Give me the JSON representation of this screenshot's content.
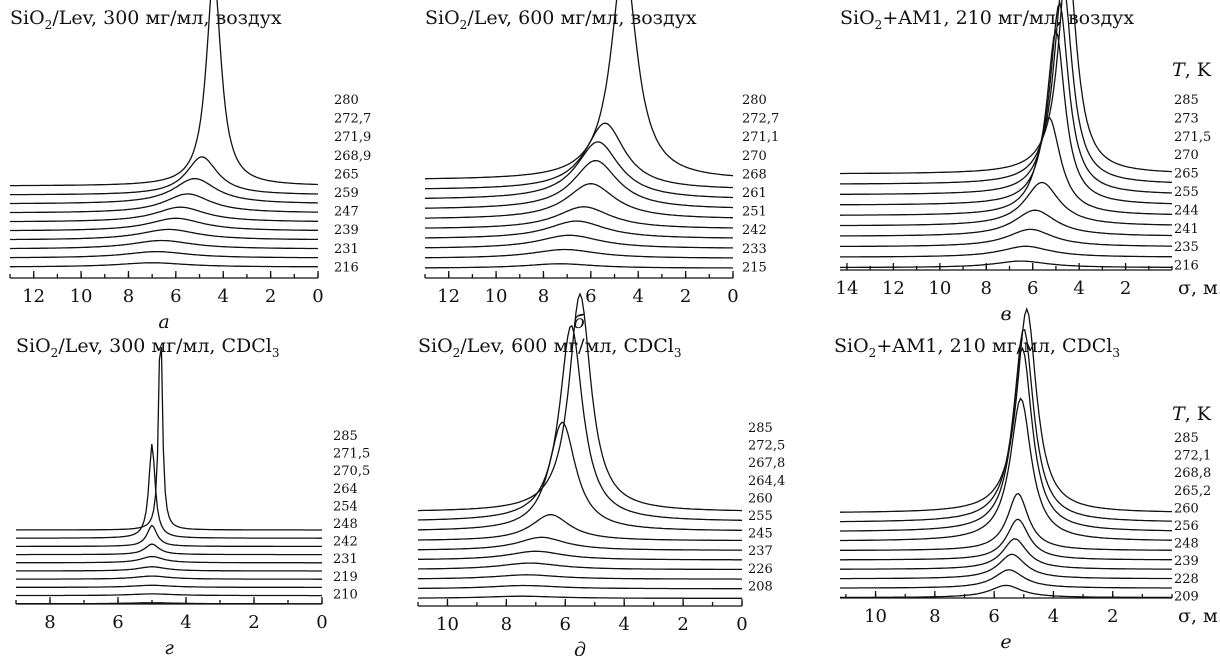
{
  "chart_data": [
    {
      "type": "line",
      "panel_letter": "а",
      "title": {
        "pre": "SiO",
        "sub": "2",
        "post": "/Lev, 300 мг/мл, воздух"
      },
      "x_ticks": [
        "12",
        "10",
        "8",
        "6",
        "4",
        "2",
        "0"
      ],
      "x_range": [
        13,
        0
      ],
      "series": [
        {
          "name": "280",
          "peak_position": 4.4,
          "peak_width": 0.75,
          "peak_height": 1.0
        },
        {
          "name": "272,7",
          "peak_position": 4.9,
          "peak_width": 1.6,
          "peak_height": 0.18
        },
        {
          "name": "271,9",
          "peak_position": 5.2,
          "peak_width": 2.2,
          "peak_height": 0.12
        },
        {
          "name": "268,9",
          "peak_position": 5.5,
          "peak_width": 2.4,
          "peak_height": 0.09
        },
        {
          "name": "265",
          "peak_position": 5.8,
          "peak_width": 2.6,
          "peak_height": 0.07
        },
        {
          "name": "259",
          "peak_position": 6.0,
          "peak_width": 2.8,
          "peak_height": 0.06
        },
        {
          "name": "247",
          "peak_position": 6.3,
          "peak_width": 3.0,
          "peak_height": 0.05
        },
        {
          "name": "239",
          "peak_position": 6.6,
          "peak_width": 3.2,
          "peak_height": 0.04
        },
        {
          "name": "231",
          "peak_position": 6.8,
          "peak_width": 3.3,
          "peak_height": 0.03
        },
        {
          "name": "216",
          "peak_position": 7.0,
          "peak_width": 3.5,
          "peak_height": 0.02
        }
      ]
    },
    {
      "type": "line",
      "panel_letter": "б",
      "title": {
        "pre": "SiO",
        "sub": "2",
        "post": "/Lev, 600 мг/мл, воздух"
      },
      "x_ticks": [
        "12",
        "10",
        "8",
        "6",
        "4",
        "2",
        "0"
      ],
      "x_range": [
        13,
        0
      ],
      "series": [
        {
          "name": "280",
          "peak_position": 4.6,
          "peak_width": 1.3,
          "peak_height": 1.0
        },
        {
          "name": "272,7",
          "peak_position": 5.4,
          "peak_width": 2.0,
          "peak_height": 0.3
        },
        {
          "name": "271,1",
          "peak_position": 5.7,
          "peak_width": 2.2,
          "peak_height": 0.26
        },
        {
          "name": "270",
          "peak_position": 5.8,
          "peak_width": 2.3,
          "peak_height": 0.22
        },
        {
          "name": "268",
          "peak_position": 6.0,
          "peak_width": 2.5,
          "peak_height": 0.16
        },
        {
          "name": "261",
          "peak_position": 6.3,
          "peak_width": 2.8,
          "peak_height": 0.1
        },
        {
          "name": "251",
          "peak_position": 6.6,
          "peak_width": 3.0,
          "peak_height": 0.08
        },
        {
          "name": "242",
          "peak_position": 6.9,
          "peak_width": 3.2,
          "peak_height": 0.06
        },
        {
          "name": "233",
          "peak_position": 7.1,
          "peak_width": 3.4,
          "peak_height": 0.04
        },
        {
          "name": "215",
          "peak_position": 7.3,
          "peak_width": 3.5,
          "peak_height": 0.02
        }
      ]
    },
    {
      "type": "line",
      "panel_letter": "в",
      "title": {
        "pre": "SiO",
        "sub": "2",
        "post": "+AM1, 210 мг/мл, воздух"
      },
      "temperature_unit": {
        "sym": "T",
        "rest": ", K"
      },
      "x_unit": "σ, м. д.",
      "x_ticks": [
        "14",
        "12",
        "10",
        "8",
        "6",
        "4",
        "2"
      ],
      "x_range": [
        14.3,
        0
      ],
      "series": [
        {
          "name": "285",
          "peak_position": 4.5,
          "peak_width": 0.95,
          "peak_height": 1.0
        },
        {
          "name": "273",
          "peak_position": 4.7,
          "peak_width": 0.95,
          "peak_height": 0.93
        },
        {
          "name": "271,5",
          "peak_position": 4.85,
          "peak_width": 0.95,
          "peak_height": 0.88
        },
        {
          "name": "270",
          "peak_position": 5.0,
          "peak_width": 0.95,
          "peak_height": 0.8
        },
        {
          "name": "265",
          "peak_position": 5.3,
          "peak_width": 1.2,
          "peak_height": 0.45
        },
        {
          "name": "255",
          "peak_position": 5.6,
          "peak_width": 1.8,
          "peak_height": 0.2
        },
        {
          "name": "244",
          "peak_position": 5.9,
          "peak_width": 2.2,
          "peak_height": 0.12
        },
        {
          "name": "241",
          "peak_position": 6.1,
          "peak_width": 2.4,
          "peak_height": 0.08
        },
        {
          "name": "235",
          "peak_position": 6.3,
          "peak_width": 2.6,
          "peak_height": 0.05
        },
        {
          "name": "216",
          "peak_position": 6.5,
          "peak_width": 2.8,
          "peak_height": 0.03
        }
      ]
    },
    {
      "type": "line",
      "panel_letter": "г",
      "title": {
        "pre": "SiO",
        "sub": "2",
        "post": "/Lev, 300 мг/мл, CDCl",
        "sub2": "3"
      },
      "x_ticks": [
        "8",
        "6",
        "4",
        "2",
        "0"
      ],
      "x_range": [
        9,
        0
      ],
      "series": [
        {
          "name": "285",
          "peak_position": 4.75,
          "peak_width": 0.13,
          "peak_height": 1.0
        },
        {
          "name": "271,5",
          "peak_position": 5.0,
          "peak_width": 0.22,
          "peak_height": 0.45
        },
        {
          "name": "270,5",
          "peak_position": 5.0,
          "peak_width": 0.35,
          "peak_height": 0.1
        },
        {
          "name": "264",
          "peak_position": 5.0,
          "peak_width": 0.5,
          "peak_height": 0.05
        },
        {
          "name": "254",
          "peak_position": 5.0,
          "peak_width": 0.8,
          "peak_height": 0.03
        },
        {
          "name": "248",
          "peak_position": 5.0,
          "peak_width": 1.0,
          "peak_height": 0.02
        },
        {
          "name": "242",
          "peak_position": 5.0,
          "peak_width": 1.2,
          "peak_height": 0.015
        },
        {
          "name": "231",
          "peak_position": 5.0,
          "peak_width": 1.4,
          "peak_height": 0.01
        },
        {
          "name": "219",
          "peak_position": 5.0,
          "peak_width": 1.6,
          "peak_height": 0.008
        },
        {
          "name": "210",
          "peak_position": 5.0,
          "peak_width": 1.8,
          "peak_height": 0.005
        }
      ]
    },
    {
      "type": "line",
      "panel_letter": "д",
      "title": {
        "pre": "SiO",
        "sub": "2",
        "post": "/Lev, 600 мг/мл, CDCl",
        "sub2": "3"
      },
      "x_ticks": [
        "10",
        "8",
        "6",
        "4",
        "2",
        "0"
      ],
      "x_range": [
        11,
        0
      ],
      "series": [
        {
          "name": "285",
          "peak_position": 5.5,
          "peak_width": 0.9,
          "peak_height": 1.0
        },
        {
          "name": "272,5",
          "peak_position": 5.8,
          "peak_width": 0.95,
          "peak_height": 0.9
        },
        {
          "name": "267,8",
          "peak_position": 6.1,
          "peak_width": 1.1,
          "peak_height": 0.5
        },
        {
          "name": "264,4",
          "peak_position": 6.5,
          "peak_width": 1.6,
          "peak_height": 0.12
        },
        {
          "name": "260",
          "peak_position": 6.8,
          "peak_width": 2.0,
          "peak_height": 0.06
        },
        {
          "name": "255",
          "peak_position": 7.0,
          "peak_width": 2.3,
          "peak_height": 0.04
        },
        {
          "name": "245",
          "peak_position": 7.2,
          "peak_width": 2.5,
          "peak_height": 0.03
        },
        {
          "name": "237",
          "peak_position": 7.3,
          "peak_width": 2.7,
          "peak_height": 0.02
        },
        {
          "name": "226",
          "peak_position": 7.4,
          "peak_width": 2.8,
          "peak_height": 0.015
        },
        {
          "name": "208",
          "peak_position": 7.5,
          "peak_width": 3.0,
          "peak_height": 0.01
        }
      ]
    },
    {
      "type": "line",
      "panel_letter": "е",
      "title": {
        "pre": "SiO",
        "sub": "2",
        "post": "+AM1, 210 мг/мл,  CDCl",
        "sub2": "3"
      },
      "temperature_unit": {
        "sym": "T",
        "rest": ", K"
      },
      "x_unit": "σ, м. д.",
      "x_ticks": [
        "10",
        "8",
        "6",
        "4",
        "2"
      ],
      "x_range": [
        11.2,
        0
      ],
      "series": [
        {
          "name": "285",
          "peak_position": 4.9,
          "peak_width": 0.8,
          "peak_height": 1.0
        },
        {
          "name": "272,1",
          "peak_position": 5.0,
          "peak_width": 0.8,
          "peak_height": 0.95
        },
        {
          "name": "268,8",
          "peak_position": 5.05,
          "peak_width": 0.8,
          "peak_height": 0.9
        },
        {
          "name": "265,2",
          "peak_position": 5.1,
          "peak_width": 0.85,
          "peak_height": 0.7
        },
        {
          "name": "260",
          "peak_position": 5.2,
          "peak_width": 0.85,
          "peak_height": 0.28
        },
        {
          "name": "256",
          "peak_position": 5.2,
          "peak_width": 0.9,
          "peak_height": 0.2
        },
        {
          "name": "248",
          "peak_position": 5.3,
          "peak_width": 1.0,
          "peak_height": 0.15
        },
        {
          "name": "239",
          "peak_position": 5.4,
          "peak_width": 1.1,
          "peak_height": 0.12
        },
        {
          "name": "228",
          "peak_position": 5.5,
          "peak_width": 1.2,
          "peak_height": 0.09
        },
        {
          "name": "209",
          "peak_position": 5.6,
          "peak_width": 1.3,
          "peak_height": 0.06
        }
      ]
    }
  ]
}
